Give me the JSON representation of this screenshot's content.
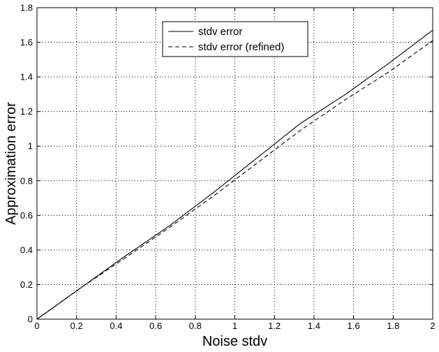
{
  "chart_data": {
    "type": "line",
    "title": "",
    "xlabel": "Noise stdv",
    "ylabel": "Approximation error",
    "xlim": [
      0,
      2
    ],
    "ylim": [
      0,
      1.8
    ],
    "xticks": [
      0,
      0.2,
      0.4,
      0.6,
      0.8,
      1,
      1.2,
      1.4,
      1.6,
      1.8,
      2
    ],
    "xtick_labels": [
      "0",
      "0.2",
      "0.4",
      "0.6",
      "0.8",
      "1",
      "1.2",
      "1.4",
      "1.6",
      "1.8",
      "2"
    ],
    "yticks": [
      0,
      0.2,
      0.4,
      0.6,
      0.8,
      1,
      1.2,
      1.4,
      1.6,
      1.8
    ],
    "ytick_labels": [
      "0",
      "0.2",
      "0.4",
      "0.6",
      "0.8",
      "1",
      "1.2",
      "1.4",
      "1.6",
      "1.8"
    ],
    "grid": true,
    "legend_position": "top-center",
    "series": [
      {
        "name": "stdv error",
        "line_style": "solid",
        "color": "#000000",
        "x": [
          0,
          0.22,
          0.44,
          0.67,
          0.89,
          1.11,
          1.33,
          1.56,
          1.78,
          2
        ],
        "y": [
          0,
          0.18,
          0.36,
          0.54,
          0.73,
          0.93,
          1.13,
          1.3,
          1.48,
          1.67
        ]
      },
      {
        "name": "stdv error (refined)",
        "line_style": "dashed",
        "color": "#000000",
        "x": [
          0,
          0.22,
          0.44,
          0.67,
          0.89,
          1.11,
          1.33,
          1.56,
          1.78,
          2
        ],
        "y": [
          0,
          0.18,
          0.35,
          0.53,
          0.71,
          0.9,
          1.09,
          1.27,
          1.43,
          1.61
        ]
      }
    ]
  }
}
